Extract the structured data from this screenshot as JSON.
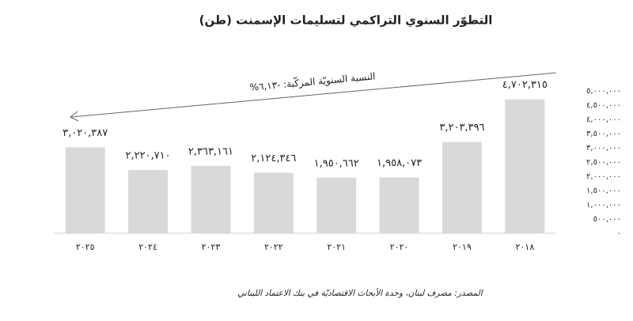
{
  "chart_data": {
    "type": "bar",
    "title": "التطوّر السنوي التراكمي لتسليمات الإسمنت (طن)",
    "annotation": "النسبة السنويّة المركّبة: -٦,١٣%",
    "source": "المصدر: مصرف لبنان، وحدة الأبحاث الاقتصاديّة في بنك الاعتماد اللبناني",
    "categories": [
      "٢٠١٨",
      "٢٠١٩",
      "٢٠٢٠",
      "٢٠٢١",
      "٢٠٢٢",
      "٢٠٢٣",
      "٢٠٢٤",
      "٢٠٢٥"
    ],
    "values": [
      4702315,
      3203396,
      1958073,
      1950662,
      2124346,
      2363161,
      2220710,
      3020387
    ],
    "value_labels": [
      "٤,٧٠٢,٣١٥",
      "٣,٢٠٣,٣٩٦",
      "١,٩٥٨,٠٧٣",
      "١,٩٥٠,٦٦٢",
      "٢,١٢٤,٣٤٦",
      "٢,٣٦٣,١٦١",
      "٢,٢٢٠,٧١٠",
      "٣,٠٢٠,٣٨٧"
    ],
    "color": "#d9d9d9",
    "x_direction": "rtl",
    "y_axis_side": "right",
    "ylim": [
      0,
      5000000
    ],
    "yticks": [
      {
        "value": 0,
        "label": "٠"
      },
      {
        "value": 500000,
        "label": "٥٠٠,٠٠٠"
      },
      {
        "value": 1000000,
        "label": "١,٠٠٠,٠٠٠"
      },
      {
        "value": 1500000,
        "label": "١,٥٠٠,٠٠٠"
      },
      {
        "value": 2000000,
        "label": "٢,٠٠٠,٠٠٠"
      },
      {
        "value": 2500000,
        "label": "٢,٥٠٠,٠٠٠"
      },
      {
        "value": 3000000,
        "label": "٣,٠٠٠,٠٠٠"
      },
      {
        "value": 3500000,
        "label": "٣,٥٠٠,٠٠٠"
      },
      {
        "value": 4000000,
        "label": "٤,٠٠٠,٠٠٠"
      },
      {
        "value": 4500000,
        "label": "٤,٥٠٠,٠٠٠"
      },
      {
        "value": 5000000,
        "label": "٥,٠٠٠,٠٠٠"
      }
    ],
    "grid": false
  }
}
